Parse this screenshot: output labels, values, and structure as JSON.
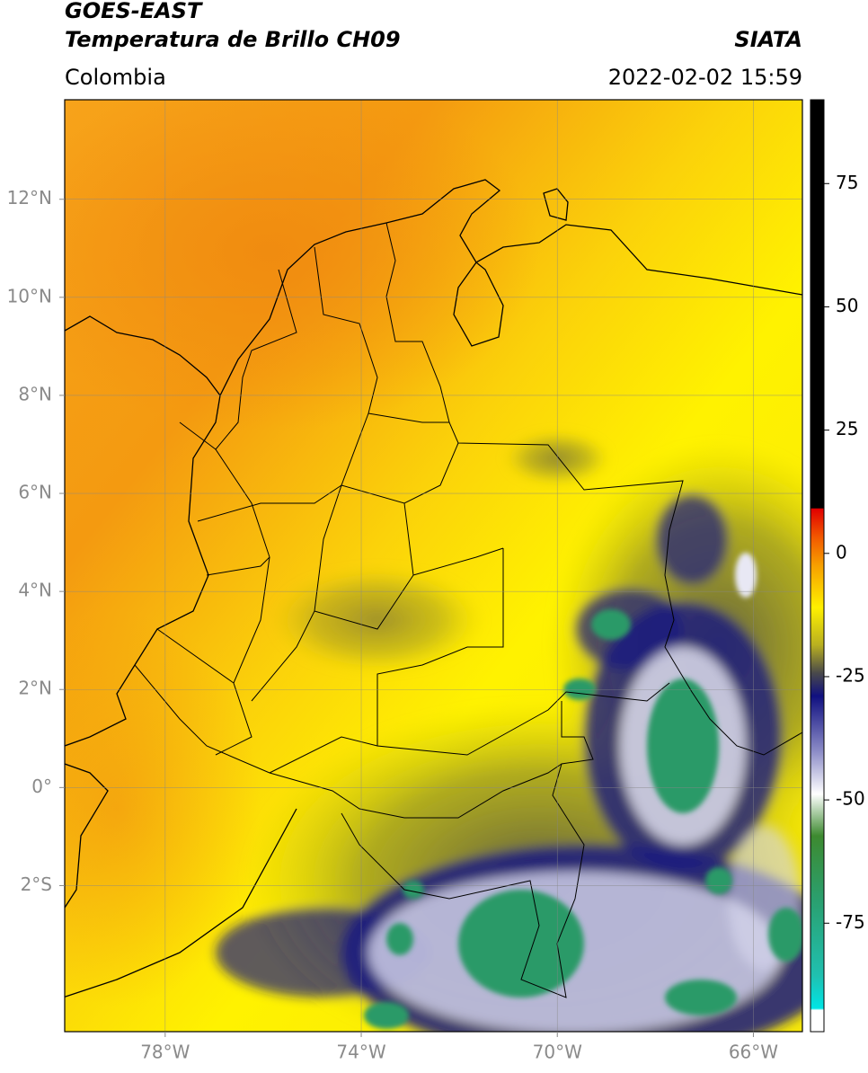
{
  "header": {
    "title": "GOES-EAST",
    "subtitle": "Temperatura de Brillo CH09",
    "source": "SIATA",
    "region": "Colombia",
    "datetime": "2022-02-02 15:59"
  },
  "map": {
    "xlim": [
      -80.05,
      -65
    ],
    "ylim": [
      -4.98,
      14.03
    ],
    "xticks": [
      {
        "value": -78,
        "label": "78°W"
      },
      {
        "value": -74,
        "label": "74°W"
      },
      {
        "value": -70,
        "label": "70°W"
      },
      {
        "value": -66,
        "label": "66°W"
      }
    ],
    "yticks": [
      {
        "value": 12,
        "label": "12°N"
      },
      {
        "value": 10,
        "label": "10°N"
      },
      {
        "value": 8,
        "label": "8°N"
      },
      {
        "value": 6,
        "label": "6°N"
      },
      {
        "value": 4,
        "label": "4°N"
      },
      {
        "value": 2,
        "label": "2°N"
      },
      {
        "value": 0,
        "label": "0°"
      },
      {
        "value": -2,
        "label": "2°S"
      }
    ],
    "grid": true
  },
  "colorbar": {
    "lim": [
      -97,
      92
    ],
    "ticks": [
      75,
      50,
      25,
      0,
      -25,
      -50,
      -75
    ]
  }
}
